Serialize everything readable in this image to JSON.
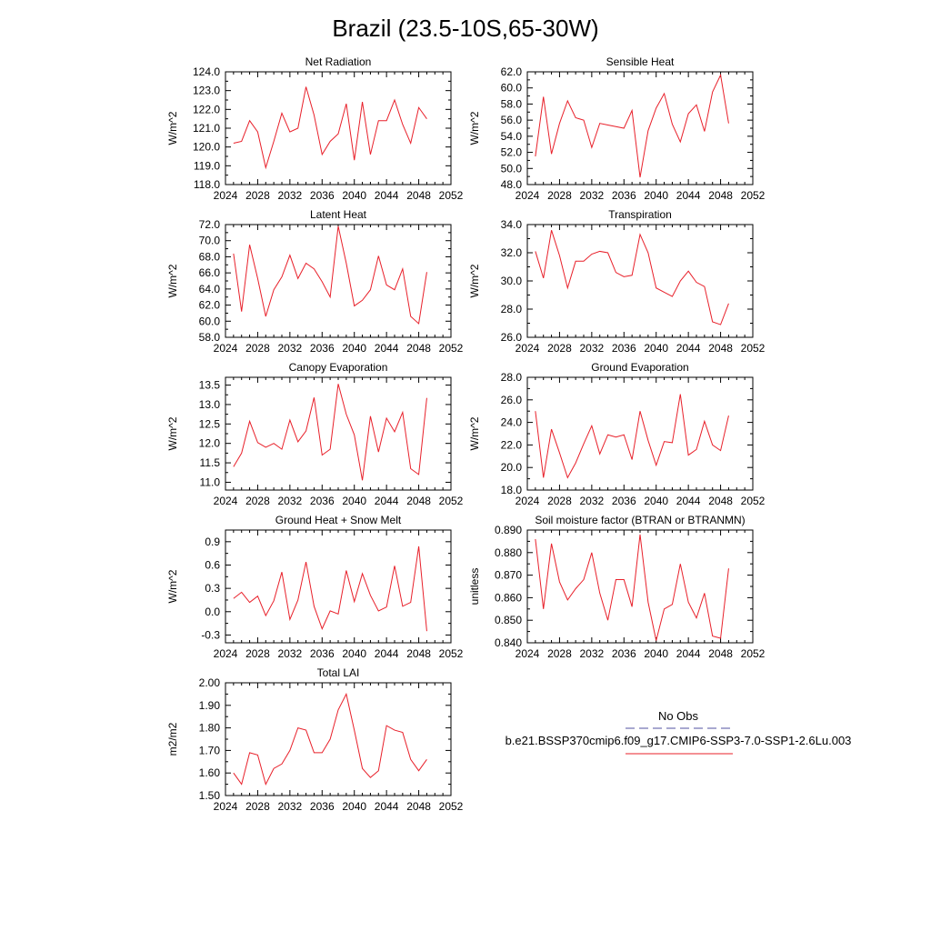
{
  "page": {
    "title": "Brazil (23.5-10S,65-30W)"
  },
  "legend": {
    "entries": [
      {
        "label": "No Obs",
        "color": "#5050a0",
        "style": "dashed"
      },
      {
        "label": "b.e21.BSSP370cmip6.f09_g17.CMIP6-SSP3-7.0-SSP1-2.6Lu.003",
        "color": "#e8202a",
        "style": "solid"
      }
    ]
  },
  "chart_data": [
    {
      "type": "line",
      "title": "Net Radiation",
      "ylabel": "W/m^2",
      "xlim": [
        2024,
        2052
      ],
      "ylim": [
        118,
        124
      ],
      "xticks": [
        2024,
        2028,
        2032,
        2036,
        2040,
        2044,
        2048,
        2052
      ],
      "yticks": [
        118.0,
        119.0,
        120.0,
        121.0,
        122.0,
        123.0,
        124.0
      ],
      "ydecimals": 1,
      "x": [
        2025,
        2026,
        2027,
        2028,
        2029,
        2030,
        2031,
        2032,
        2033,
        2034,
        2035,
        2036,
        2037,
        2038,
        2039,
        2040,
        2041,
        2042,
        2043,
        2044,
        2045,
        2046,
        2047,
        2048,
        2049
      ],
      "series": [
        {
          "color": "#e8202a",
          "values": [
            120.2,
            120.3,
            121.4,
            120.8,
            118.9,
            120.3,
            121.8,
            120.8,
            121.0,
            123.2,
            121.7,
            119.6,
            120.3,
            120.7,
            122.3,
            119.3,
            122.4,
            119.6,
            121.4,
            121.4,
            122.5,
            121.2,
            120.2,
            122.1,
            121.5
          ]
        }
      ]
    },
    {
      "type": "line",
      "title": "Sensible Heat",
      "ylabel": "W/m^2",
      "xlim": [
        2024,
        2052
      ],
      "ylim": [
        48,
        62
      ],
      "xticks": [
        2024,
        2028,
        2032,
        2036,
        2040,
        2044,
        2048,
        2052
      ],
      "yticks": [
        48.0,
        50.0,
        52.0,
        54.0,
        56.0,
        58.0,
        60.0,
        62.0
      ],
      "ydecimals": 1,
      "x": [
        2025,
        2026,
        2027,
        2028,
        2029,
        2030,
        2031,
        2032,
        2033,
        2034,
        2035,
        2036,
        2037,
        2038,
        2039,
        2040,
        2041,
        2042,
        2043,
        2044,
        2045,
        2046,
        2047,
        2048,
        2049
      ],
      "series": [
        {
          "color": "#e8202a",
          "values": [
            51.5,
            58.9,
            51.8,
            55.6,
            58.4,
            56.3,
            56.0,
            52.6,
            55.6,
            55.4,
            55.2,
            55.0,
            57.2,
            48.9,
            54.7,
            57.5,
            59.3,
            55.5,
            53.3,
            56.8,
            57.9,
            54.6,
            59.5,
            61.6,
            55.6
          ]
        }
      ]
    },
    {
      "type": "line",
      "title": "Latent Heat",
      "ylabel": "W/m^2",
      "xlim": [
        2024,
        2052
      ],
      "ylim": [
        58,
        72
      ],
      "xticks": [
        2024,
        2028,
        2032,
        2036,
        2040,
        2044,
        2048,
        2052
      ],
      "yticks": [
        58.0,
        60.0,
        62.0,
        64.0,
        66.0,
        68.0,
        70.0,
        72.0
      ],
      "ydecimals": 1,
      "x": [
        2025,
        2026,
        2027,
        2028,
        2029,
        2030,
        2031,
        2032,
        2033,
        2034,
        2035,
        2036,
        2037,
        2038,
        2039,
        2040,
        2041,
        2042,
        2043,
        2044,
        2045,
        2046,
        2047,
        2048,
        2049
      ],
      "series": [
        {
          "color": "#e8202a",
          "values": [
            68.4,
            61.2,
            69.5,
            65.3,
            60.6,
            63.9,
            65.5,
            68.2,
            65.3,
            67.2,
            66.5,
            64.9,
            63.0,
            71.8,
            67.2,
            61.9,
            62.6,
            63.9,
            68.1,
            64.5,
            63.9,
            66.5,
            60.6,
            59.7,
            66.1
          ]
        }
      ]
    },
    {
      "type": "line",
      "title": "Transpiration",
      "ylabel": "W/m^2",
      "xlim": [
        2024,
        2052
      ],
      "ylim": [
        26,
        34
      ],
      "xticks": [
        2024,
        2028,
        2032,
        2036,
        2040,
        2044,
        2048,
        2052
      ],
      "yticks": [
        26.0,
        28.0,
        30.0,
        32.0,
        34.0
      ],
      "ydecimals": 1,
      "x": [
        2025,
        2026,
        2027,
        2028,
        2029,
        2030,
        2031,
        2032,
        2033,
        2034,
        2035,
        2036,
        2037,
        2038,
        2039,
        2040,
        2041,
        2042,
        2043,
        2044,
        2045,
        2046,
        2047,
        2048,
        2049
      ],
      "series": [
        {
          "color": "#e8202a",
          "values": [
            32.1,
            30.2,
            33.6,
            31.8,
            29.5,
            31.4,
            31.4,
            31.9,
            32.1,
            32.0,
            30.6,
            30.3,
            30.4,
            33.3,
            32.0,
            29.5,
            29.2,
            28.9,
            30.0,
            30.7,
            29.9,
            29.6,
            27.1,
            26.9,
            28.4
          ]
        }
      ]
    },
    {
      "type": "line",
      "title": "Canopy Evaporation",
      "ylabel": "W/m^2",
      "xlim": [
        2024,
        2052
      ],
      "ylim": [
        10.8,
        13.7
      ],
      "xticks": [
        2024,
        2028,
        2032,
        2036,
        2040,
        2044,
        2048,
        2052
      ],
      "yticks": [
        11.0,
        11.5,
        12.0,
        12.5,
        13.0,
        13.5
      ],
      "ydecimals": 1,
      "x": [
        2025,
        2026,
        2027,
        2028,
        2029,
        2030,
        2031,
        2032,
        2033,
        2034,
        2035,
        2036,
        2037,
        2038,
        2039,
        2040,
        2041,
        2042,
        2043,
        2044,
        2045,
        2046,
        2047,
        2048,
        2049
      ],
      "series": [
        {
          "color": "#e8202a",
          "values": [
            11.4,
            11.75,
            12.57,
            12.02,
            11.9,
            12.0,
            11.85,
            12.6,
            12.04,
            12.32,
            13.18,
            11.7,
            11.85,
            13.53,
            12.75,
            12.22,
            11.05,
            12.7,
            11.78,
            12.65,
            12.3,
            12.8,
            11.35,
            11.2,
            13.17
          ]
        }
      ]
    },
    {
      "type": "line",
      "title": "Ground Evaporation",
      "ylabel": "W/m^2",
      "xlim": [
        2024,
        2052
      ],
      "ylim": [
        18,
        28
      ],
      "xticks": [
        2024,
        2028,
        2032,
        2036,
        2040,
        2044,
        2048,
        2052
      ],
      "yticks": [
        18.0,
        20.0,
        22.0,
        24.0,
        26.0,
        28.0
      ],
      "ydecimals": 1,
      "x": [
        2025,
        2026,
        2027,
        2028,
        2029,
        2030,
        2031,
        2032,
        2033,
        2034,
        2035,
        2036,
        2037,
        2038,
        2039,
        2040,
        2041,
        2042,
        2043,
        2044,
        2045,
        2046,
        2047,
        2048,
        2049
      ],
      "series": [
        {
          "color": "#e8202a",
          "values": [
            25.0,
            19.1,
            23.4,
            21.3,
            19.1,
            20.4,
            22.1,
            23.7,
            21.2,
            22.9,
            22.7,
            22.9,
            20.7,
            25.0,
            22.4,
            20.2,
            22.3,
            22.2,
            26.5,
            21.1,
            21.6,
            24.1,
            22.0,
            21.5,
            24.6
          ]
        }
      ]
    },
    {
      "type": "line",
      "title": "Ground Heat + Snow Melt",
      "ylabel": "W/m^2",
      "xlim": [
        2024,
        2052
      ],
      "ylim": [
        -0.4,
        1.05
      ],
      "xticks": [
        2024,
        2028,
        2032,
        2036,
        2040,
        2044,
        2048,
        2052
      ],
      "yticks": [
        -0.3,
        0.0,
        0.3,
        0.6,
        0.9
      ],
      "ydecimals": 1,
      "x": [
        2025,
        2026,
        2027,
        2028,
        2029,
        2030,
        2031,
        2032,
        2033,
        2034,
        2035,
        2036,
        2037,
        2038,
        2039,
        2040,
        2041,
        2042,
        2043,
        2044,
        2045,
        2046,
        2047,
        2048,
        2049
      ],
      "series": [
        {
          "color": "#e8202a",
          "values": [
            0.17,
            0.25,
            0.12,
            0.2,
            -0.05,
            0.14,
            0.51,
            -0.1,
            0.15,
            0.64,
            0.07,
            -0.22,
            0.01,
            -0.03,
            0.53,
            0.13,
            0.49,
            0.21,
            0.01,
            0.06,
            0.59,
            0.07,
            0.12,
            0.84,
            -0.25
          ]
        }
      ]
    },
    {
      "type": "line",
      "title": "Soil moisture factor (BTRAN or BTRANMN)",
      "ylabel": "unitless",
      "xlim": [
        2024,
        2052
      ],
      "ylim": [
        0.84,
        0.89
      ],
      "xticks": [
        2024,
        2028,
        2032,
        2036,
        2040,
        2044,
        2048,
        2052
      ],
      "yticks": [
        0.84,
        0.85,
        0.86,
        0.87,
        0.88,
        0.89
      ],
      "ydecimals": 3,
      "x": [
        2025,
        2026,
        2027,
        2028,
        2029,
        2030,
        2031,
        2032,
        2033,
        2034,
        2035,
        2036,
        2037,
        2038,
        2039,
        2040,
        2041,
        2042,
        2043,
        2044,
        2045,
        2046,
        2047,
        2048,
        2049
      ],
      "series": [
        {
          "color": "#e8202a",
          "values": [
            0.886,
            0.855,
            0.884,
            0.867,
            0.859,
            0.864,
            0.868,
            0.88,
            0.862,
            0.85,
            0.868,
            0.868,
            0.856,
            0.888,
            0.858,
            0.841,
            0.855,
            0.857,
            0.875,
            0.858,
            0.851,
            0.862,
            0.843,
            0.842,
            0.873
          ]
        }
      ]
    },
    {
      "type": "line",
      "title": "Total LAI",
      "ylabel": "m2/m2",
      "xlim": [
        2024,
        2052
      ],
      "ylim": [
        1.5,
        2.0
      ],
      "xticks": [
        2024,
        2028,
        2032,
        2036,
        2040,
        2044,
        2048,
        2052
      ],
      "yticks": [
        1.5,
        1.6,
        1.7,
        1.8,
        1.9,
        2.0
      ],
      "ydecimals": 2,
      "x": [
        2025,
        2026,
        2027,
        2028,
        2029,
        2030,
        2031,
        2032,
        2033,
        2034,
        2035,
        2036,
        2037,
        2038,
        2039,
        2040,
        2041,
        2042,
        2043,
        2044,
        2045,
        2046,
        2047,
        2048,
        2049
      ],
      "series": [
        {
          "color": "#e8202a",
          "values": [
            1.6,
            1.55,
            1.69,
            1.68,
            1.55,
            1.62,
            1.64,
            1.7,
            1.8,
            1.79,
            1.69,
            1.69,
            1.75,
            1.88,
            1.95,
            1.79,
            1.62,
            1.58,
            1.61,
            1.81,
            1.79,
            1.78,
            1.66,
            1.61,
            1.66
          ]
        }
      ]
    }
  ]
}
